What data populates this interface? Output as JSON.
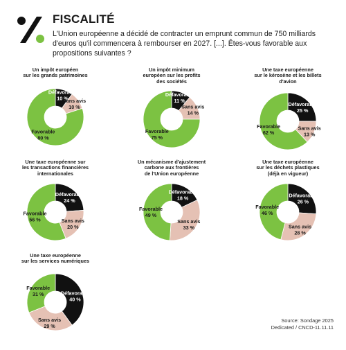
{
  "header": {
    "title": "FISCALITÉ",
    "intro": "L'Union européenne a décidé de contracter un emprunt commun de 750 milliards d'euros qu'il commencera à rembourser en 2027. [...]. Êtes-vous favorable aux propositions suivantes ?"
  },
  "colors": {
    "Favorable": "#7cc242",
    "Défavorable": "#111111",
    "Sans avis": "#e5c1b4"
  },
  "chart_data": [
    {
      "type": "pie",
      "title": "Un impôt européen\nsur les grands patrimoines",
      "slices": [
        {
          "label": "Défavorable",
          "value": 10
        },
        {
          "label": "Sans avis",
          "value": 10
        },
        {
          "label": "Favorable",
          "value": 80
        }
      ]
    },
    {
      "type": "pie",
      "title": "Un impôt minimum\neuropéen sur les profits\ndes sociétés",
      "slices": [
        {
          "label": "Défavorable",
          "value": 11
        },
        {
          "label": "Sans avis",
          "value": 14
        },
        {
          "label": "Favorable",
          "value": 75
        }
      ]
    },
    {
      "type": "pie",
      "title": "Une taxe européenne\nsur le kérosène et les billets\nd'avion",
      "slices": [
        {
          "label": "Défavorable",
          "value": 25
        },
        {
          "label": "Sans avis",
          "value": 13
        },
        {
          "label": "Favorable",
          "value": 62
        }
      ]
    },
    {
      "type": "pie",
      "title": "Une taxe européenne sur\nles transactions financières\ninternationales",
      "slices": [
        {
          "label": "Défavorable",
          "value": 24
        },
        {
          "label": "Sans avis",
          "value": 20
        },
        {
          "label": "Favorable",
          "value": 56
        }
      ]
    },
    {
      "type": "pie",
      "title": "Un mécanisme d'ajustement\ncarbone aux frontières\nde l'Union européenne",
      "slices": [
        {
          "label": "Défavorable",
          "value": 18
        },
        {
          "label": "Sans avis",
          "value": 33
        },
        {
          "label": "Favorable",
          "value": 49
        }
      ]
    },
    {
      "type": "pie",
      "title": "Une taxe européenne\nsur les déchets plastiques\n(déjà en vigueur)",
      "slices": [
        {
          "label": "Défavorable",
          "value": 26
        },
        {
          "label": "Sans avis",
          "value": 28
        },
        {
          "label": "Favorable",
          "value": 46
        }
      ]
    },
    {
      "type": "pie",
      "title": "Une taxe européenne\nsur les services numériques",
      "slices": [
        {
          "label": "Défavorable",
          "value": 40
        },
        {
          "label": "Sans avis",
          "value": 29
        },
        {
          "label": "Favorable",
          "value": 31
        }
      ]
    }
  ],
  "footer": {
    "source": "Source: Sondage 2025",
    "credit": "Dedicated / CNCD-11.11.11"
  }
}
